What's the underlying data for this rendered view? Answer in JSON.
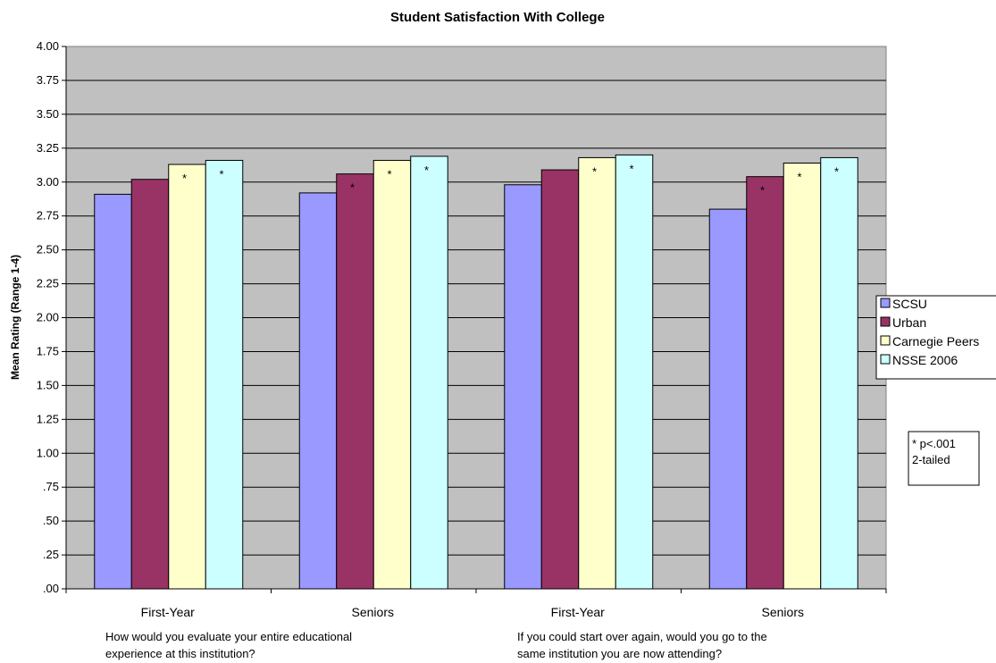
{
  "chart_data": {
    "type": "bar",
    "title": "Student Satisfaction With College",
    "ylabel": "Mean Rating (Range 1-4)",
    "ylim": [
      0,
      4
    ],
    "ytick_values": [
      0,
      0.25,
      0.5,
      0.75,
      1.0,
      1.25,
      1.5,
      1.75,
      2.0,
      2.25,
      2.5,
      2.75,
      3.0,
      3.25,
      3.5,
      3.75,
      4.0
    ],
    "ytick_labels": [
      ".00",
      ".25",
      ".50",
      ".75",
      "1.00",
      "1.25",
      "1.50",
      "1.75",
      "2.00",
      "2.25",
      "2.50",
      "2.75",
      "3.00",
      "3.25",
      "3.50",
      "3.75",
      "4.00"
    ],
    "grid": true,
    "plot_background": "#c0c0c0",
    "categories": [
      "First-Year",
      "Seniors",
      "First-Year",
      "Seniors"
    ],
    "question_groups": [
      {
        "label_lines": [
          "How would you evaluate your entire educational",
          "experience at this institution?"
        ]
      },
      {
        "label_lines": [
          "If you could start over again, would you go to the",
          "same institution you are now attending?"
        ]
      }
    ],
    "series": [
      {
        "name": "SCSU",
        "color": "#9999ff",
        "values": [
          2.91,
          2.92,
          2.98,
          2.8
        ],
        "significant": [
          false,
          false,
          false,
          false
        ]
      },
      {
        "name": "Urban",
        "color": "#993366",
        "values": [
          3.02,
          3.06,
          3.09,
          3.04
        ],
        "significant": [
          false,
          true,
          false,
          true
        ]
      },
      {
        "name": "Carnegie Peers",
        "color": "#ffffcc",
        "values": [
          3.13,
          3.16,
          3.18,
          3.14
        ],
        "significant": [
          true,
          true,
          true,
          true
        ]
      },
      {
        "name": "NSSE 2006",
        "color": "#ccffff",
        "values": [
          3.16,
          3.19,
          3.2,
          3.18
        ],
        "significant": [
          true,
          true,
          true,
          true
        ]
      }
    ],
    "significance_marker": "*",
    "legend_position": "right",
    "note_lines": [
      "* p<.001",
      "2-tailed"
    ]
  }
}
